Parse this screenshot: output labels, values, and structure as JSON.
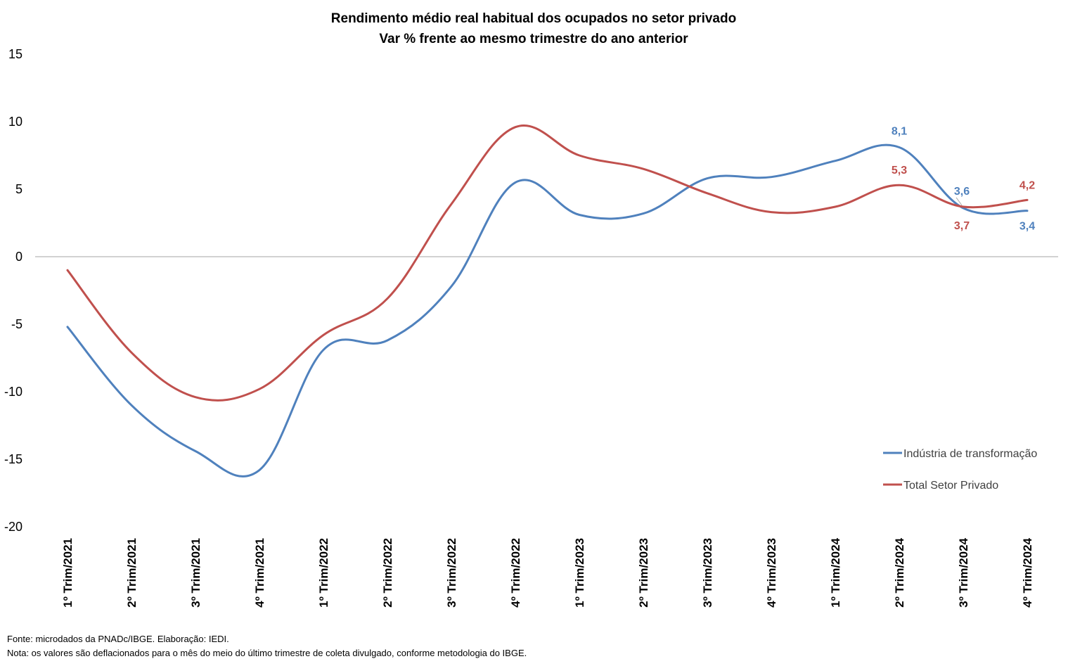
{
  "chart_data": {
    "type": "line",
    "title": "Rendimento médio real habitual dos ocupados no setor privado",
    "subtitle": "Var %  frente ao mesmo trimestre do ano anterior",
    "categories": [
      "1º Trim/2021",
      "2º Trim/2021",
      "3º Trim/2021",
      "4º Trim/2021",
      "1º Trim/2022",
      "2º Trim/2022",
      "3º Trim/2022",
      "4º Trim/2022",
      "1º Trim/2023",
      "2º Trim/2023",
      "3º Trim/2023",
      "4º Trim/2023",
      "1º Trim/2024",
      "2º Trim/2024",
      "3º Trim/2024",
      "4º Trim/2024"
    ],
    "series": [
      {
        "name": "Indústria de transformação",
        "color": "#4F81BD",
        "values": [
          -5.2,
          -11.0,
          -14.4,
          -15.8,
          -6.9,
          -6.2,
          -2.2,
          5.5,
          3.1,
          3.2,
          5.8,
          5.9,
          7.1,
          8.1,
          3.6,
          3.4
        ],
        "labels": [
          null,
          null,
          null,
          null,
          null,
          null,
          null,
          null,
          null,
          null,
          null,
          null,
          null,
          "8,1",
          "3,6",
          "3,4"
        ]
      },
      {
        "name": "Total Setor Privado",
        "color": "#C0504D",
        "values": [
          -1.0,
          -7.1,
          -10.4,
          -9.8,
          -5.8,
          -3.1,
          3.9,
          9.6,
          7.5,
          6.5,
          4.7,
          3.3,
          3.7,
          5.3,
          3.7,
          4.2
        ],
        "labels": [
          null,
          null,
          null,
          null,
          null,
          null,
          null,
          null,
          null,
          null,
          null,
          null,
          null,
          "5,3",
          "3,7",
          "4,2"
        ]
      }
    ],
    "yticks": [
      "15",
      "10",
      "5",
      "0",
      "-5",
      "-10",
      "-15",
      "-20"
    ],
    "ylim": [
      -20,
      15
    ],
    "grid": false,
    "legend_position": "right"
  },
  "footnotes": {
    "source": "Fonte: microdados da PNADc/IBGE. Elaboração: IEDI.",
    "note": "Nota: os valores são deflacionados para o mês do meio do último trimestre de coleta divulgado, conforme metodologia do IBGE."
  }
}
